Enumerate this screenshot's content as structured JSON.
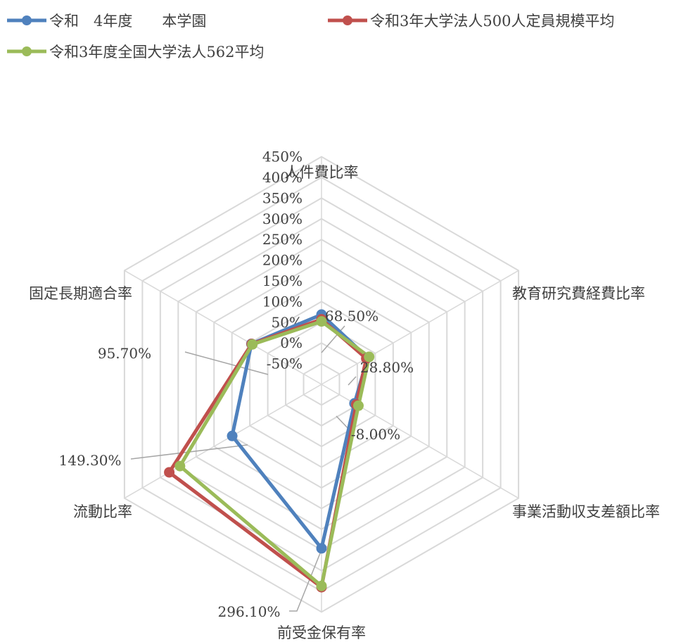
{
  "chart_data": {
    "type": "radar",
    "categories": [
      "人件費比率",
      "教育研究費経費比率",
      "事業活動収支差額比率",
      "前受金保有率",
      "流動比率",
      "固定長期適合率"
    ],
    "series": [
      {
        "name": "令和　4年度　　本学園",
        "color": "#4f81bd",
        "values": [
          68.5,
          28.8,
          -8.0,
          296.1,
          149.3,
          95.7
        ]
      },
      {
        "name": "令和3年大学法人500人定員規模平均",
        "color": "#c0504d",
        "values": [
          57,
          25,
          -3,
          390,
          325,
          95
        ]
      },
      {
        "name": "令和3年度全国大学法人562平均",
        "color": "#9bbb59",
        "values": [
          52,
          33,
          3,
          387,
          295,
          93
        ]
      }
    ],
    "ticks": [
      "450%",
      "400%",
      "350%",
      "300%",
      "250%",
      "200%",
      "150%",
      "100%",
      "50%",
      "0%",
      "-50%"
    ],
    "tick_values": [
      450,
      400,
      350,
      300,
      250,
      200,
      150,
      100,
      50,
      0,
      -50
    ],
    "rlim": [
      -100,
      450
    ],
    "data_labels": [
      "68.50%",
      "28.80%",
      "-8.00%",
      "296.10%",
      "149.30%",
      "95.70%"
    ],
    "legend_position": "top"
  }
}
